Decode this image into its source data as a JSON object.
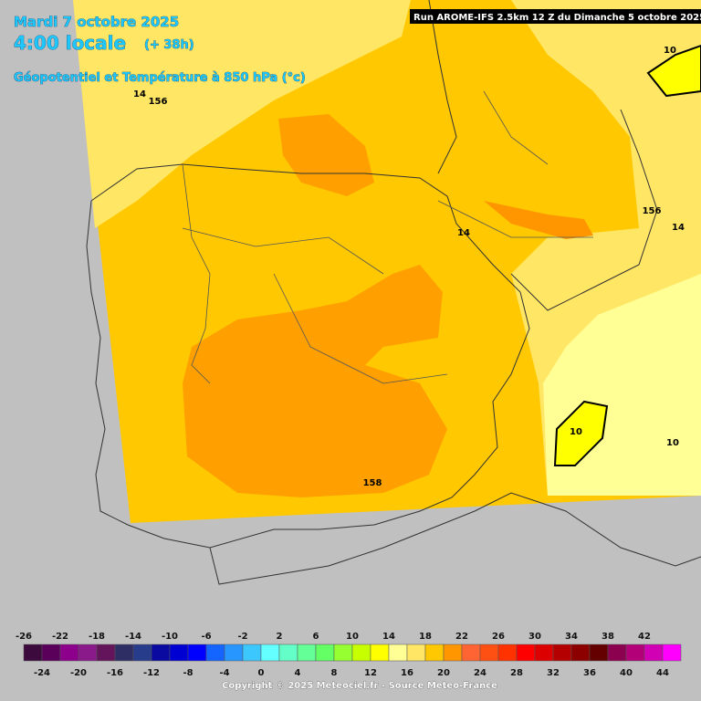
{
  "header": {
    "date": "Mardi 7 octobre 2025",
    "time": "4:00 locale",
    "lead": "(+ 38h)",
    "subtitle": "Géopotentiel et Température à 850 hPa (°c)",
    "run": "Run AROME-IFS 2.5km 12 Z du Dimanche 5 octobre 2025"
  },
  "map_labels": [
    "14",
    "156",
    "14",
    "156",
    "14",
    "10",
    "10",
    "10",
    "158"
  ],
  "colorbar": {
    "colors": [
      "#3c0a3c",
      "#5a005a",
      "#8c008c",
      "#8a1a8a",
      "#64145a",
      "#2e2e64",
      "#283c8c",
      "#0a0aa0",
      "#0000d2",
      "#0000ff",
      "#1464ff",
      "#2896ff",
      "#3cc8ff",
      "#64ffff",
      "#64ffc8",
      "#64ff96",
      "#64ff64",
      "#96ff32",
      "#c8ff00",
      "#ffff00",
      "#ffff96",
      "#ffe664",
      "#ffc800",
      "#ff9600",
      "#ff6432",
      "#ff5014",
      "#ff3200",
      "#ff0000",
      "#dc0000",
      "#b40000",
      "#8c0000",
      "#640000",
      "#8c0050",
      "#b40078",
      "#d200b4",
      "#ff00ff"
    ],
    "top_labels": [
      -26,
      -22,
      -18,
      -14,
      -10,
      -6,
      -2,
      2,
      6,
      10,
      14,
      18,
      22,
      26,
      30,
      34,
      38,
      42
    ],
    "bottom_labels": [
      -24,
      -20,
      -16,
      -12,
      -8,
      -4,
      0,
      4,
      8,
      12,
      16,
      20,
      24,
      28,
      32,
      36,
      40,
      44
    ]
  },
  "copyright": "Copyright © 2025 Meteociel.fr - Source Meteo-France"
}
